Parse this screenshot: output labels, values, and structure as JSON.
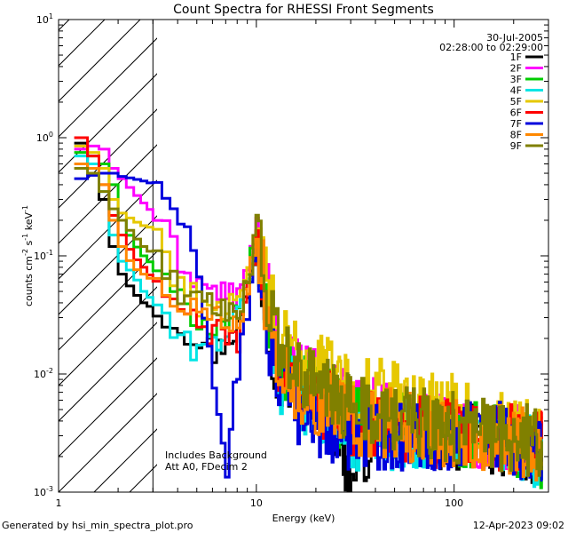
{
  "chart_data": {
    "type": "line",
    "title": "Count Spectra for RHESSI Front Segments",
    "xlabel": "Energy (keV)",
    "ylabel": {
      "base": "counts cm",
      "exp1": "-2",
      "mid": " s",
      "exp2": "-1",
      "end": " keV",
      "exp3": "-1"
    },
    "xscale": "log",
    "yscale": "log",
    "xlim": [
      1,
      300
    ],
    "ylim": [
      0.001,
      10
    ],
    "x_ticks": [
      {
        "value": 1,
        "label": "1"
      },
      {
        "value": 10,
        "label": "10"
      },
      {
        "value": 100,
        "label": "100"
      }
    ],
    "y_ticks": [
      {
        "value": 0.001,
        "base": "10",
        "exp": "-3"
      },
      {
        "value": 0.01,
        "base": "10",
        "exp": "-2"
      },
      {
        "value": 0.1,
        "base": "10",
        "exp": "-1"
      },
      {
        "value": 1,
        "base": "10",
        "exp": "0"
      },
      {
        "value": 10,
        "base": "10",
        "exp": "1"
      }
    ],
    "date": "30-Jul-2005",
    "time_range": "02:28:00 to 02:29:00",
    "attenuator_boundary_keV": 3,
    "annotations": [
      "Includes Background",
      "Att A0, FDecim 2"
    ],
    "series": [
      {
        "name": "1F",
        "color": "#000000",
        "values": [
          [
            1.2,
            0.9
          ],
          [
            1.4,
            0.55
          ],
          [
            1.6,
            0.3
          ],
          [
            1.8,
            0.12
          ],
          [
            2,
            0.07
          ],
          [
            2.3,
            0.05
          ],
          [
            2.6,
            0.04
          ],
          [
            3,
            0.035
          ],
          [
            3.5,
            0.03
          ],
          [
            4,
            0.025
          ],
          [
            5,
            0.02
          ],
          [
            6,
            0.015
          ],
          [
            8,
            0.025
          ],
          [
            9,
            0.05
          ],
          [
            10,
            0.15
          ],
          [
            11,
            0.03
          ],
          [
            13,
            0.01
          ],
          [
            16,
            0.008
          ],
          [
            20,
            0.006
          ],
          [
            25,
            0.004
          ],
          [
            30,
            0.0012
          ],
          [
            40,
            0.004
          ],
          [
            60,
            0.003
          ],
          [
            100,
            0.003
          ],
          [
            150,
            0.0028
          ],
          [
            200,
            0.0025
          ],
          [
            280,
            0.002
          ]
        ]
      },
      {
        "name": "2F",
        "color": "#ff00ff",
        "values": [
          [
            1.2,
            0.8
          ],
          [
            1.4,
            0.85
          ],
          [
            1.6,
            0.8
          ],
          [
            1.8,
            0.55
          ],
          [
            2,
            0.45
          ],
          [
            2.3,
            0.35
          ],
          [
            2.6,
            0.28
          ],
          [
            3,
            0.22
          ],
          [
            3.5,
            0.13
          ],
          [
            4,
            0.09
          ],
          [
            5,
            0.06
          ],
          [
            6,
            0.05
          ],
          [
            8,
            0.045
          ],
          [
            9,
            0.08
          ],
          [
            10,
            0.18
          ],
          [
            11,
            0.05
          ],
          [
            13,
            0.015
          ],
          [
            16,
            0.01
          ],
          [
            20,
            0.008
          ],
          [
            25,
            0.006
          ],
          [
            30,
            0.005
          ],
          [
            40,
            0.005
          ],
          [
            60,
            0.004
          ],
          [
            100,
            0.0035
          ],
          [
            150,
            0.003
          ],
          [
            200,
            0.0028
          ],
          [
            280,
            0.0022
          ]
        ]
      },
      {
        "name": "3F",
        "color": "#00cc00",
        "values": [
          [
            1.2,
            0.75
          ],
          [
            1.4,
            0.7
          ],
          [
            1.6,
            0.6
          ],
          [
            1.8,
            0.4
          ],
          [
            2,
            0.2
          ],
          [
            2.3,
            0.13
          ],
          [
            2.6,
            0.1
          ],
          [
            3,
            0.08
          ],
          [
            3.5,
            0.05
          ],
          [
            4,
            0.04
          ],
          [
            5,
            0.03
          ],
          [
            6,
            0.025
          ],
          [
            8,
            0.03
          ],
          [
            9,
            0.07
          ],
          [
            10,
            0.16
          ],
          [
            11,
            0.04
          ],
          [
            13,
            0.012
          ],
          [
            16,
            0.009
          ],
          [
            20,
            0.007
          ],
          [
            25,
            0.005
          ],
          [
            30,
            0.004
          ],
          [
            40,
            0.004
          ],
          [
            60,
            0.0035
          ],
          [
            100,
            0.003
          ],
          [
            150,
            0.003
          ],
          [
            200,
            0.0028
          ],
          [
            280,
            0.002
          ]
        ]
      },
      {
        "name": "4F",
        "color": "#00e5e5",
        "values": [
          [
            1.2,
            0.7
          ],
          [
            1.4,
            0.6
          ],
          [
            1.6,
            0.35
          ],
          [
            1.8,
            0.15
          ],
          [
            2,
            0.09
          ],
          [
            2.3,
            0.07
          ],
          [
            2.6,
            0.05
          ],
          [
            3,
            0.04
          ],
          [
            3.5,
            0.025
          ],
          [
            4,
            0.018
          ],
          [
            5,
            0.017
          ],
          [
            6,
            0.018
          ],
          [
            8,
            0.03
          ],
          [
            9,
            0.06
          ],
          [
            10,
            0.14
          ],
          [
            11,
            0.03
          ],
          [
            13,
            0.009
          ],
          [
            16,
            0.007
          ],
          [
            20,
            0.005
          ],
          [
            25,
            0.004
          ],
          [
            30,
            0.003
          ],
          [
            40,
            0.003
          ],
          [
            60,
            0.003
          ],
          [
            100,
            0.003
          ],
          [
            150,
            0.0028
          ],
          [
            200,
            0.0025
          ],
          [
            280,
            0.002
          ]
        ]
      },
      {
        "name": "5F",
        "color": "#e6c800",
        "values": [
          [
            1.2,
            0.85
          ],
          [
            1.4,
            0.75
          ],
          [
            1.6,
            0.55
          ],
          [
            1.8,
            0.3
          ],
          [
            2,
            0.23
          ],
          [
            2.3,
            0.2
          ],
          [
            2.6,
            0.18
          ],
          [
            3,
            0.17
          ],
          [
            3.5,
            0.08
          ],
          [
            4,
            0.06
          ],
          [
            5,
            0.04
          ],
          [
            6,
            0.04
          ],
          [
            8,
            0.035
          ],
          [
            9,
            0.07
          ],
          [
            10,
            0.2
          ],
          [
            11,
            0.06
          ],
          [
            13,
            0.02
          ],
          [
            16,
            0.015
          ],
          [
            20,
            0.012
          ],
          [
            25,
            0.01
          ],
          [
            30,
            0.008
          ],
          [
            40,
            0.007
          ],
          [
            60,
            0.006
          ],
          [
            100,
            0.005
          ],
          [
            150,
            0.004
          ],
          [
            200,
            0.0035
          ],
          [
            280,
            0.003
          ]
        ]
      },
      {
        "name": "6F",
        "color": "#ff0000",
        "values": [
          [
            1.2,
            1.0
          ],
          [
            1.4,
            0.7
          ],
          [
            1.6,
            0.4
          ],
          [
            1.8,
            0.22
          ],
          [
            2,
            0.15
          ],
          [
            2.3,
            0.1
          ],
          [
            2.6,
            0.08
          ],
          [
            3,
            0.06
          ],
          [
            3.5,
            0.04
          ],
          [
            4,
            0.035
          ],
          [
            5,
            0.025
          ],
          [
            6,
            0.022
          ],
          [
            8,
            0.02
          ],
          [
            9,
            0.05
          ],
          [
            10,
            0.15
          ],
          [
            11,
            0.04
          ],
          [
            13,
            0.01
          ],
          [
            16,
            0.008
          ],
          [
            20,
            0.006
          ],
          [
            25,
            0.005
          ],
          [
            30,
            0.004
          ],
          [
            40,
            0.004
          ],
          [
            60,
            0.0035
          ],
          [
            100,
            0.003
          ],
          [
            150,
            0.003
          ],
          [
            200,
            0.0028
          ],
          [
            280,
            0.0025
          ]
        ]
      },
      {
        "name": "7F",
        "color": "#0000dd",
        "values": [
          [
            1.2,
            0.45
          ],
          [
            1.4,
            0.48
          ],
          [
            1.6,
            0.5
          ],
          [
            1.8,
            0.5
          ],
          [
            2,
            0.47
          ],
          [
            2.3,
            0.45
          ],
          [
            2.6,
            0.43
          ],
          [
            3,
            0.4
          ],
          [
            3.5,
            0.3
          ],
          [
            4,
            0.2
          ],
          [
            4.5,
            0.12
          ],
          [
            5,
            0.05
          ],
          [
            5.5,
            0.02
          ],
          [
            6,
            0.008
          ],
          [
            7,
            0.0015
          ],
          [
            7.5,
            0.007
          ],
          [
            8,
            0.012
          ],
          [
            9,
            0.04
          ],
          [
            10,
            0.12
          ],
          [
            11,
            0.02
          ],
          [
            13,
            0.008
          ],
          [
            16,
            0.005
          ],
          [
            20,
            0.004
          ],
          [
            25,
            0.003
          ],
          [
            30,
            0.003
          ],
          [
            40,
            0.003
          ],
          [
            60,
            0.003
          ],
          [
            100,
            0.003
          ],
          [
            150,
            0.003
          ],
          [
            200,
            0.0028
          ],
          [
            280,
            0.002
          ]
        ]
      },
      {
        "name": "8F",
        "color": "#ff8800",
        "values": [
          [
            1.2,
            0.6
          ],
          [
            1.4,
            0.55
          ],
          [
            1.6,
            0.4
          ],
          [
            1.8,
            0.2
          ],
          [
            2,
            0.12
          ],
          [
            2.3,
            0.08
          ],
          [
            2.6,
            0.07
          ],
          [
            3,
            0.06
          ],
          [
            3.5,
            0.05
          ],
          [
            4,
            0.04
          ],
          [
            5,
            0.035
          ],
          [
            6,
            0.03
          ],
          [
            8,
            0.03
          ],
          [
            9,
            0.06
          ],
          [
            10,
            0.17
          ],
          [
            11,
            0.04
          ],
          [
            13,
            0.012
          ],
          [
            16,
            0.008
          ],
          [
            20,
            0.006
          ],
          [
            25,
            0.005
          ],
          [
            30,
            0.004
          ],
          [
            40,
            0.004
          ],
          [
            60,
            0.0035
          ],
          [
            100,
            0.003
          ],
          [
            150,
            0.003
          ],
          [
            200,
            0.0028
          ],
          [
            280,
            0.0022
          ]
        ]
      },
      {
        "name": "9F",
        "color": "#808000",
        "values": [
          [
            1.2,
            0.55
          ],
          [
            1.4,
            0.5
          ],
          [
            1.6,
            0.35
          ],
          [
            1.8,
            0.25
          ],
          [
            2,
            0.2
          ],
          [
            2.3,
            0.15
          ],
          [
            2.6,
            0.12
          ],
          [
            3,
            0.1
          ],
          [
            3.5,
            0.07
          ],
          [
            4,
            0.05
          ],
          [
            5,
            0.04
          ],
          [
            6,
            0.035
          ],
          [
            8,
            0.035
          ],
          [
            9,
            0.07
          ],
          [
            10,
            0.18
          ],
          [
            11,
            0.05
          ],
          [
            13,
            0.015
          ],
          [
            16,
            0.01
          ],
          [
            20,
            0.008
          ],
          [
            25,
            0.006
          ],
          [
            30,
            0.005
          ],
          [
            40,
            0.005
          ],
          [
            60,
            0.004
          ],
          [
            100,
            0.0035
          ],
          [
            150,
            0.003
          ],
          [
            200,
            0.003
          ],
          [
            280,
            0.0025
          ]
        ]
      }
    ]
  },
  "footer": {
    "generated_by": "Generated by hsi_min_spectra_plot.pro",
    "timestamp": "12-Apr-2023 09:02"
  }
}
